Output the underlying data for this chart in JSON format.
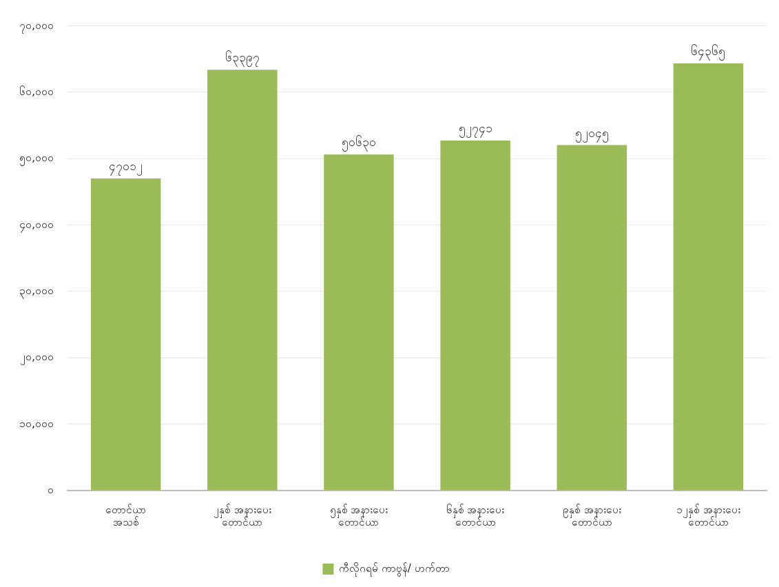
{
  "chart_data": {
    "type": "bar",
    "categories": [
      "တောင်ယာ\nအသစ်",
      "၂နှစ် အနားပေး\nတောင်ယာ",
      "၅နှစ် အနားပေး\nတောင်ယာ",
      "၆နှစ် အနားပေး\nတောင်ယာ",
      "၉နှစ် အနားပေး\nတောင်ယာ",
      "၁၂နှစ် အနားပေး\nတောင်ယာ"
    ],
    "series": [
      {
        "name": "ကီလိုဂရမ် ကာဗွန်/ ဟက်တာ",
        "color": "#9bbb59",
        "values": [
          47012,
          63397,
          50630,
          52741,
          52045,
          64365
        ],
        "value_labels": [
          "၄၇၀၁၂",
          "၆၃၃၉၇",
          "၅၀၆၃၀",
          "၅၂၇၄၁",
          "၅၂၀၄၅",
          "၆၄၃၆၅"
        ]
      }
    ],
    "ylim": [
      0,
      70000
    ],
    "yticks": [
      {
        "value": 0,
        "label": "၀"
      },
      {
        "value": 10000,
        "label": "၁၀,၀၀၀"
      },
      {
        "value": 20000,
        "label": "၂၀,၀၀၀"
      },
      {
        "value": 30000,
        "label": "၃၀,၀၀၀"
      },
      {
        "value": 40000,
        "label": "၄၀,၀၀၀"
      },
      {
        "value": 50000,
        "label": "၅၀,၀၀၀"
      },
      {
        "value": 60000,
        "label": "၆၀,၀၀၀"
      },
      {
        "value": 70000,
        "label": "၇၀,၀၀၀"
      }
    ],
    "grid": "y",
    "legend": "bottom"
  }
}
